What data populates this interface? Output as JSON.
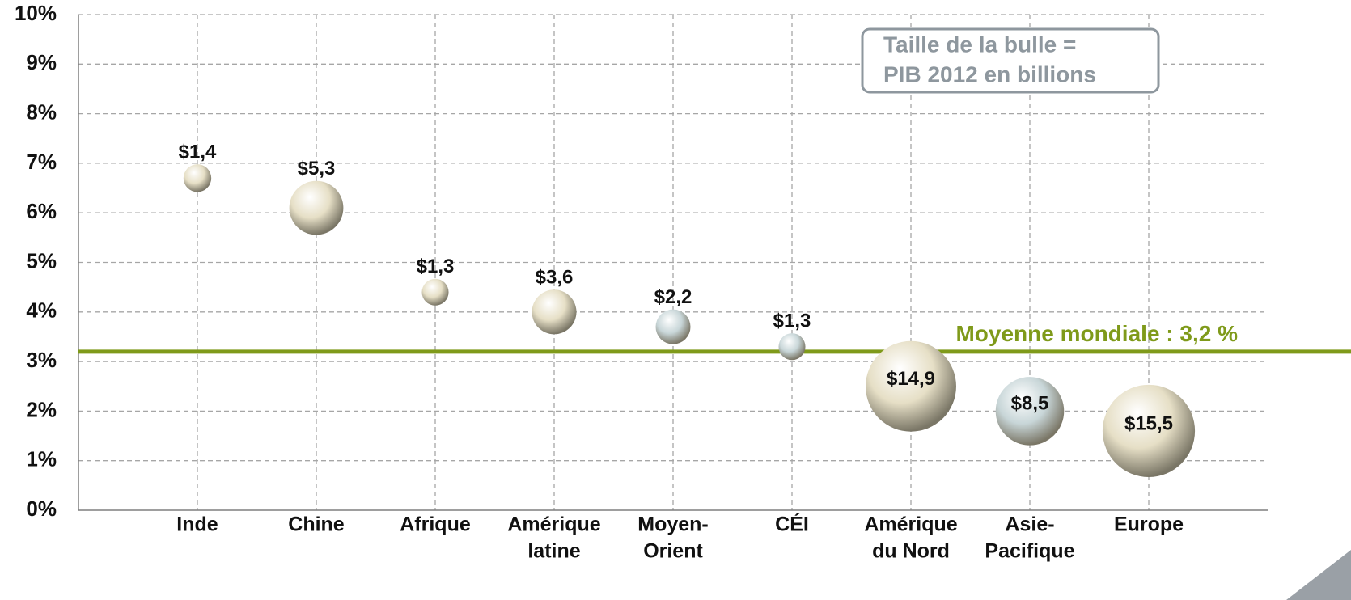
{
  "chart_data": {
    "type": "bubble",
    "categories": [
      [
        "Inde"
      ],
      [
        "Chine"
      ],
      [
        "Afrique"
      ],
      [
        "Amérique",
        "latine"
      ],
      [
        "Moyen-",
        "Orient"
      ],
      [
        "CÉI"
      ],
      [
        "Amérique",
        "du Nord"
      ],
      [
        "Asie-",
        "Pacifique"
      ],
      [
        "Europe"
      ]
    ],
    "x": [
      1,
      2,
      3,
      4,
      5,
      6,
      7,
      8,
      9
    ],
    "values": [
      6.7,
      6.1,
      4.4,
      4.0,
      3.7,
      3.3,
      2.5,
      2.0,
      1.6
    ],
    "sizes": [
      1.4,
      5.3,
      1.3,
      3.6,
      2.2,
      1.3,
      14.9,
      8.5,
      15.5
    ],
    "value_labels": [
      "$1,4",
      "$5,3",
      "$1,3",
      "$3,6",
      "$2,2",
      "$1,3",
      "$14,9",
      "$8,5",
      "$15,5"
    ],
    "colors": [
      "#e6dfc6",
      "#e6dfc6",
      "#e6dfc6",
      "#e6dfc6",
      "#c8d6d8",
      "#c8d6d8",
      "#e6dfc6",
      "#c8d6d8",
      "#e6dfc6"
    ],
    "xlim": [
      0,
      10
    ],
    "ylim": [
      0,
      10
    ],
    "yticks": [
      {
        "value": 0,
        "label": "0%"
      },
      {
        "value": 1,
        "label": "1%"
      },
      {
        "value": 2,
        "label": "2%"
      },
      {
        "value": 3,
        "label": "3%"
      },
      {
        "value": 4,
        "label": "4%"
      },
      {
        "value": 5,
        "label": "5%"
      },
      {
        "value": 6,
        "label": "6%"
      },
      {
        "value": 7,
        "label": "7%"
      },
      {
        "value": 8,
        "label": "8%"
      },
      {
        "value": 9,
        "label": "9%"
      },
      {
        "value": 10,
        "label": "10%"
      }
    ],
    "grid": true,
    "reference_line": {
      "value": 3.2,
      "label": "Moyenne mondiale : 3,2 %",
      "color": "#7f9a1a"
    },
    "annotation": [
      "Taille de la bulle =",
      "PIB 2012 en billions"
    ]
  }
}
